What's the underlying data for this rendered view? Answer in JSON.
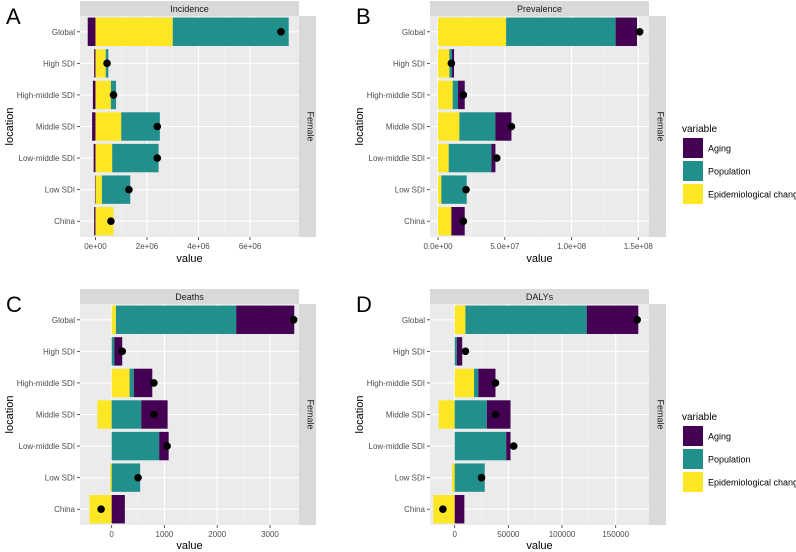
{
  "chart_data": [
    {
      "type": "bar",
      "panel_label": "A",
      "title": "Incidence",
      "facet": "Female",
      "xlabel": "value",
      "ylabel": "location",
      "categories": [
        "Global",
        "High SDI",
        "High-middle SDI",
        "Middle SDI",
        "Low-middle SDI",
        "Low SDI",
        "China"
      ],
      "xlim": [
        -600000,
        7900000
      ],
      "xticks": [
        0,
        2000000,
        4000000,
        6000000
      ],
      "xtick_labels": [
        "0e+00",
        "2e+06",
        "4e+06",
        "6e+06"
      ],
      "series": [
        {
          "name": "Aging",
          "values": [
            -300000,
            -50000,
            -100000,
            -130000,
            -70000,
            -20000,
            -50000
          ]
        },
        {
          "name": "Population",
          "values": [
            4500000,
            100000,
            200000,
            1500000,
            1800000,
            1100000,
            0
          ]
        },
        {
          "name": "Epidemiological change",
          "values": [
            3000000,
            400000,
            600000,
            1000000,
            650000,
            250000,
            700000
          ]
        }
      ],
      "net_change": [
        7200000,
        450000,
        700000,
        2400000,
        2400000,
        1300000,
        600000
      ]
    },
    {
      "type": "bar",
      "panel_label": "B",
      "title": "Prevalence",
      "facet": "Female",
      "xlabel": "value",
      "ylabel": "location",
      "categories": [
        "Global",
        "High SDI",
        "High-middle SDI",
        "Middle SDI",
        "Low-middle SDI",
        "Low SDI",
        "China"
      ],
      "xlim": [
        -6000000,
        158000000
      ],
      "xticks": [
        0,
        50000000,
        100000000,
        150000000
      ],
      "xtick_labels": [
        "0.0e+00",
        "5.0e+07",
        "1.0e+08",
        "1.5e+08"
      ],
      "series": [
        {
          "name": "Aging",
          "values": [
            16000000,
            1500000,
            5000000,
            12000000,
            3000000,
            0,
            10000000
          ]
        },
        {
          "name": "Population",
          "values": [
            82000000,
            2000000,
            4000000,
            27000000,
            32000000,
            19000000,
            0
          ]
        },
        {
          "name": "Epidemiological change",
          "values": [
            51000000,
            8500000,
            11000000,
            16000000,
            8000000,
            2500000,
            10000000
          ]
        }
      ],
      "net_change": [
        151000000,
        10000000,
        19000000,
        55000000,
        44000000,
        21000000,
        19000000
      ]
    },
    {
      "type": "bar",
      "panel_label": "C",
      "title": "Deaths",
      "facet": "Female",
      "xlabel": "value",
      "ylabel": "location",
      "categories": [
        "Global",
        "High SDI",
        "High-middle SDI",
        "Middle SDI",
        "Low-middle SDI",
        "Low SDI",
        "China"
      ],
      "xlim": [
        -600,
        3550
      ],
      "xticks": [
        0,
        1000,
        2000,
        3000
      ],
      "xtick_labels": [
        "0",
        "1000",
        "2000",
        "3000"
      ],
      "series": [
        {
          "name": "Aging",
          "values": [
            1100,
            150,
            350,
            500,
            180,
            0,
            250
          ]
        },
        {
          "name": "Population",
          "values": [
            2280,
            50,
            80,
            560,
            900,
            540,
            0
          ]
        },
        {
          "name": "Epidemiological change",
          "values": [
            80,
            0,
            340,
            -270,
            0,
            -30,
            -420
          ]
        }
      ],
      "net_change": [
        3450,
        200,
        800,
        800,
        1050,
        500,
        -200
      ]
    },
    {
      "type": "bar",
      "panel_label": "D",
      "title": "DALYs",
      "facet": "Female",
      "xlabel": "value",
      "ylabel": "location",
      "categories": [
        "Global",
        "High SDI",
        "High-middle SDI",
        "Middle SDI",
        "Low-middle SDI",
        "Low SDI",
        "China"
      ],
      "xlim": [
        -23000,
        181000
      ],
      "xticks": [
        0,
        50000,
        100000,
        150000
      ],
      "xtick_labels": [
        "0",
        "50000",
        "100000",
        "150000"
      ],
      "series": [
        {
          "name": "Aging",
          "values": [
            48000,
            5000,
            16000,
            22000,
            4000,
            0,
            9000
          ]
        },
        {
          "name": "Population",
          "values": [
            113000,
            2000,
            4000,
            30000,
            48000,
            28000,
            0
          ]
        },
        {
          "name": "Epidemiological change",
          "values": [
            10000,
            0,
            18000,
            -15000,
            0,
            -2500,
            -20000
          ]
        }
      ],
      "net_change": [
        170000,
        10000,
        38000,
        38000,
        55000,
        25000,
        -11000
      ]
    }
  ],
  "legend": {
    "title": "variable",
    "items": [
      {
        "label": "Aging",
        "color": "#440154"
      },
      {
        "label": "Population",
        "color": "#21908C"
      },
      {
        "label": "Epidemiological change",
        "color": "#FDE725"
      }
    ]
  }
}
